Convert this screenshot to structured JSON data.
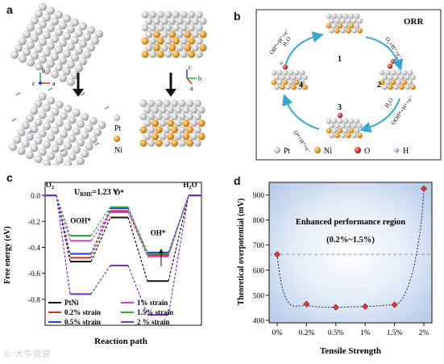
{
  "panels": {
    "a": "a",
    "b": "b",
    "c": "c",
    "d": "d"
  },
  "panel_a": {
    "legend": [
      {
        "label": "Pt",
        "color": "#c9c9c9"
      },
      {
        "label": "Ni",
        "color": "#e39a2e"
      }
    ],
    "axes_left": {
      "b": "b",
      "c": "c",
      "a": "a"
    },
    "axes_right": {
      "c": "c",
      "a": "a",
      "b": "b"
    }
  },
  "panel_b": {
    "title": "ORR",
    "step_numbers": [
      "1",
      "2",
      "3",
      "4"
    ],
    "arrows": {
      "top_right": "O₂+H⁺+e⁻",
      "right_bottom_1": "H₂O",
      "right_bottom_2": "OOH*+H⁺+e⁻",
      "bottom_left": "O*+H⁺+e⁻",
      "left_top_1": "OH*+H⁺+e⁻",
      "left_top_2": "H₂O"
    },
    "legend": [
      {
        "label": "Pt",
        "color": "#c9c9c9"
      },
      {
        "label": "Ni",
        "color": "#e39a2e"
      },
      {
        "label": "O",
        "color": "#d9302c"
      },
      {
        "label": "H",
        "color": "#b9a6e6"
      }
    ],
    "colors": {
      "arrow": "#38a8d0",
      "border": "#222222"
    }
  },
  "watermark": "© 大牛说说",
  "chart_data": [
    {
      "type": "line",
      "panel": "c",
      "note": "free energy step diagram",
      "annotation": "U_RHE=1.23 V",
      "annotation_main": "U",
      "annotation_sub": "RHE",
      "annotation_rest": "=1.23 V",
      "xlabel": "Reaction path",
      "ylabel": "Free energy (eV)",
      "ylim": [
        -1.0,
        0.1
      ],
      "yticks": [
        0.0,
        -0.2,
        -0.4,
        -0.6,
        -0.8
      ],
      "ytick_labels": [
        "0.0",
        "-0.2",
        "-0.4",
        "-0.6",
        "-0.8"
      ],
      "states": [
        "O₂",
        "OOH*",
        "O*",
        "OH*",
        "H₂O"
      ],
      "state_labels": [
        {
          "main": "O",
          "sub": "2"
        },
        {
          "main": "OOH*",
          "sub": ""
        },
        {
          "main": "O*",
          "sub": ""
        },
        {
          "main": "OH*",
          "sub": ""
        },
        {
          "main": "H",
          "sub": "2",
          "tail": "O"
        }
      ],
      "series": [
        {
          "name": "PtNi",
          "color": "#111111",
          "values": [
            0,
            -0.51,
            -0.17,
            -0.66,
            0
          ]
        },
        {
          "name": "0.2% strain",
          "color": "#d6282b",
          "values": [
            0,
            -0.48,
            -0.12,
            -0.46,
            0
          ]
        },
        {
          "name": "0.5% strain",
          "color": "#1f3fd6",
          "values": [
            0,
            -0.45,
            -0.1,
            -0.44,
            0
          ]
        },
        {
          "name": "1% strain",
          "color": "#d63bd6",
          "values": [
            0,
            -0.35,
            -0.13,
            -0.47,
            0
          ]
        },
        {
          "name": "1.5% strain",
          "color": "#2fae35",
          "values": [
            0,
            -0.31,
            -0.09,
            -0.45,
            0
          ]
        },
        {
          "name": "2 % strain",
          "color": "#7a2fc4",
          "values": [
            0,
            -0.76,
            -0.54,
            -0.92,
            0
          ]
        }
      ]
    },
    {
      "type": "scatter",
      "panel": "d",
      "title": "Enhanced performance region",
      "subtitle": "(0.2%~1.5%)",
      "xlabel": "Tensile Strength",
      "ylabel": "Theoretical overpotential (mV)",
      "categories": [
        "0%",
        "0.2%",
        "0.5%",
        "1%",
        "1.5%",
        "2%"
      ],
      "values": [
        663,
        465,
        452,
        455,
        462,
        925
      ],
      "ylim": [
        390,
        950
      ],
      "yticks": [
        400,
        500,
        600,
        700,
        800,
        900
      ],
      "reference_line": 663,
      "marker_color": "#d93a3a"
    }
  ]
}
